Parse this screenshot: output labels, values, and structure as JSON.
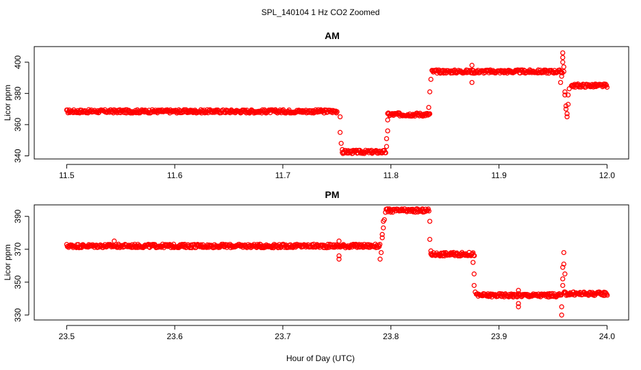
{
  "figure": {
    "title": "SPL_140104  1 Hz CO2 Zoomed",
    "xlabel": "Hour of Day (UTC)"
  },
  "chart_data": [
    {
      "type": "scatter",
      "title": "AM",
      "ylabel": "Licor ppm",
      "xlim": [
        11.47,
        12.02
      ],
      "ylim": [
        338,
        410
      ],
      "xticks": [
        "11.5",
        "11.6",
        "11.7",
        "11.8",
        "11.9",
        "12.0"
      ],
      "yticks": [
        "340",
        "360",
        "380",
        "400"
      ],
      "marker_color": "#ff0000",
      "segments": [
        {
          "x_start": 11.5,
          "x_end": 11.75,
          "y": 368.5
        },
        {
          "x_start": 11.755,
          "x_end": 11.795,
          "y": 342.5
        },
        {
          "x_start": 11.797,
          "x_end": 11.836,
          "y": 366.5
        },
        {
          "x_start": 11.838,
          "x_end": 11.958,
          "y": 394
        },
        {
          "x_start": 11.967,
          "x_end": 12.0,
          "y": 385
        }
      ],
      "points": [
        [
          11.753,
          365
        ],
        [
          11.753,
          355
        ],
        [
          11.754,
          348
        ],
        [
          11.755,
          344
        ],
        [
          11.796,
          346
        ],
        [
          11.796,
          351
        ],
        [
          11.797,
          356
        ],
        [
          11.797,
          363
        ],
        [
          11.835,
          371
        ],
        [
          11.836,
          381
        ],
        [
          11.837,
          389
        ],
        [
          11.875,
          398
        ],
        [
          11.875,
          387
        ],
        [
          11.957,
          387
        ],
        [
          11.958,
          391
        ],
        [
          11.959,
          400
        ],
        [
          11.959,
          403
        ],
        [
          11.959,
          406
        ],
        [
          11.96,
          397
        ],
        [
          11.96,
          394
        ],
        [
          11.961,
          381
        ],
        [
          11.961,
          379
        ],
        [
          11.962,
          372
        ],
        [
          11.962,
          370
        ],
        [
          11.963,
          367
        ],
        [
          11.963,
          365
        ],
        [
          11.964,
          373
        ],
        [
          11.964,
          379
        ],
        [
          11.965,
          383
        ]
      ]
    },
    {
      "type": "scatter",
      "title": "PM",
      "ylabel": "Licor ppm",
      "xlim": [
        23.47,
        24.02
      ],
      "ylim": [
        327,
        397
      ],
      "xticks": [
        "23.5",
        "23.6",
        "23.7",
        "23.8",
        "23.9",
        "24.0"
      ],
      "yticks": [
        "330",
        "350",
        "370",
        "390"
      ],
      "marker_color": "#ff0000",
      "segments": [
        {
          "x_start": 23.5,
          "x_end": 23.79,
          "y": 372
        },
        {
          "x_start": 23.795,
          "x_end": 23.835,
          "y": 393.5
        },
        {
          "x_start": 23.837,
          "x_end": 23.877,
          "y": 367
        },
        {
          "x_start": 23.879,
          "x_end": 23.958,
          "y": 342
        },
        {
          "x_start": 23.96,
          "x_end": 24.0,
          "y": 343
        }
      ],
      "points": [
        [
          23.752,
          375
        ],
        [
          23.752,
          366
        ],
        [
          23.752,
          364
        ],
        [
          23.544,
          375
        ],
        [
          23.79,
          364
        ],
        [
          23.791,
          368
        ],
        [
          23.792,
          377
        ],
        [
          23.792,
          379
        ],
        [
          23.793,
          383
        ],
        [
          23.793,
          387
        ],
        [
          23.794,
          388
        ],
        [
          23.836,
          387
        ],
        [
          23.836,
          376
        ],
        [
          23.837,
          369
        ],
        [
          23.876,
          362
        ],
        [
          23.877,
          355
        ],
        [
          23.877,
          348
        ],
        [
          23.878,
          344
        ],
        [
          23.918,
          345
        ],
        [
          23.918,
          337
        ],
        [
          23.918,
          335
        ],
        [
          23.958,
          330
        ],
        [
          23.958,
          335
        ],
        [
          23.959,
          348
        ],
        [
          23.959,
          352
        ],
        [
          23.959,
          359
        ],
        [
          23.96,
          361
        ],
        [
          23.96,
          368
        ],
        [
          23.961,
          355
        ]
      ]
    }
  ]
}
